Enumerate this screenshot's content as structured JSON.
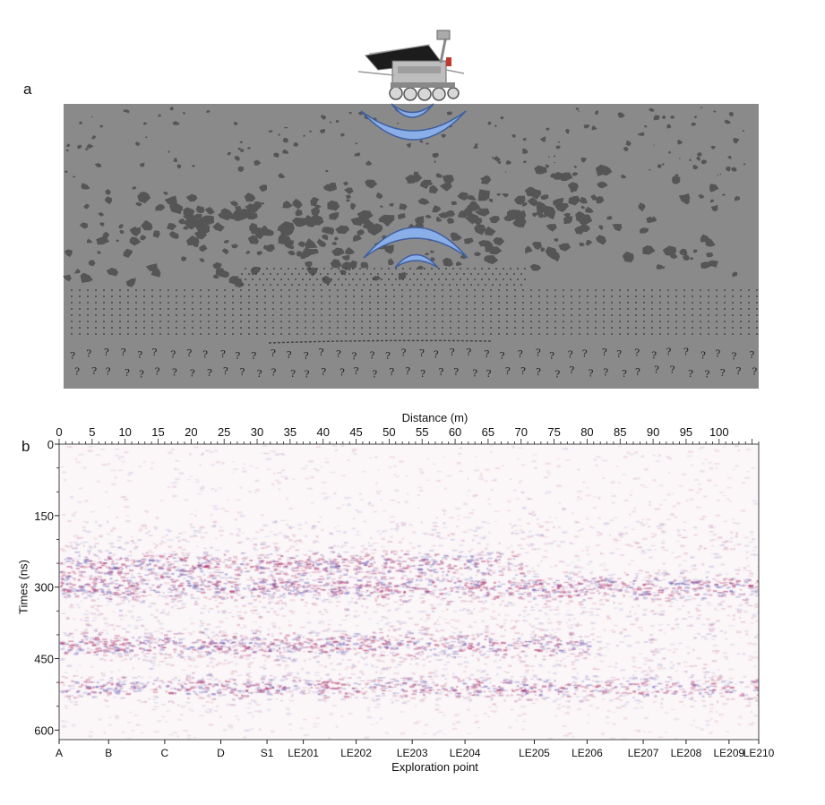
{
  "panel_a": {
    "label": "a",
    "question_mark": "?",
    "colors": {
      "background": "#8a8a8a",
      "rock": "#555555",
      "wave_fill": "#8aaee8",
      "wave_stroke": "#3f5f9e"
    },
    "icons": [
      "rover-icon",
      "radar-wave-icon"
    ]
  },
  "panel_b": {
    "label": "b",
    "colors": {
      "reflection_red": "#b0306a",
      "reflection_blue": "#6a5fb8",
      "axis": "#222222"
    },
    "chart_data": {
      "type": "heatmap",
      "title": "",
      "xlabel": "Distance (m)",
      "ylabel": "Times (ns)",
      "bottom_label": "Exploration point",
      "x_range": [
        0,
        106
      ],
      "y_range": [
        0,
        620
      ],
      "y_inverted": true,
      "x_ticks": [
        0,
        5,
        10,
        15,
        20,
        25,
        30,
        35,
        40,
        45,
        50,
        55,
        60,
        65,
        70,
        75,
        80,
        85,
        90,
        95,
        100
      ],
      "y_ticks": [
        0,
        150,
        300,
        450,
        600
      ],
      "exploration_points": [
        {
          "label": "A",
          "distance": 0
        },
        {
          "label": "B",
          "distance": 7.5
        },
        {
          "label": "C",
          "distance": 16
        },
        {
          "label": "D",
          "distance": 24.5
        },
        {
          "label": "S1",
          "distance": 31.5
        },
        {
          "label": "LE201",
          "distance": 37
        },
        {
          "label": "LE202",
          "distance": 45
        },
        {
          "label": "LE203",
          "distance": 53.5
        },
        {
          "label": "LE204",
          "distance": 61.5
        },
        {
          "label": "LE205",
          "distance": 72
        },
        {
          "label": "LE206",
          "distance": 80
        },
        {
          "label": "LE207",
          "distance": 88.5
        },
        {
          "label": "LE208",
          "distance": 95
        },
        {
          "label": "LE209",
          "distance": 101.5
        },
        {
          "label": "LE210",
          "distance": 106
        }
      ],
      "reflection_bands": [
        {
          "time_ns": 250,
          "from_m": 0,
          "to_m": 70
        },
        {
          "time_ns": 300,
          "from_m": 0,
          "to_m": 106
        },
        {
          "time_ns": 420,
          "from_m": 0,
          "to_m": 80
        },
        {
          "time_ns": 510,
          "from_m": 0,
          "to_m": 106
        }
      ],
      "grid": false
    }
  }
}
